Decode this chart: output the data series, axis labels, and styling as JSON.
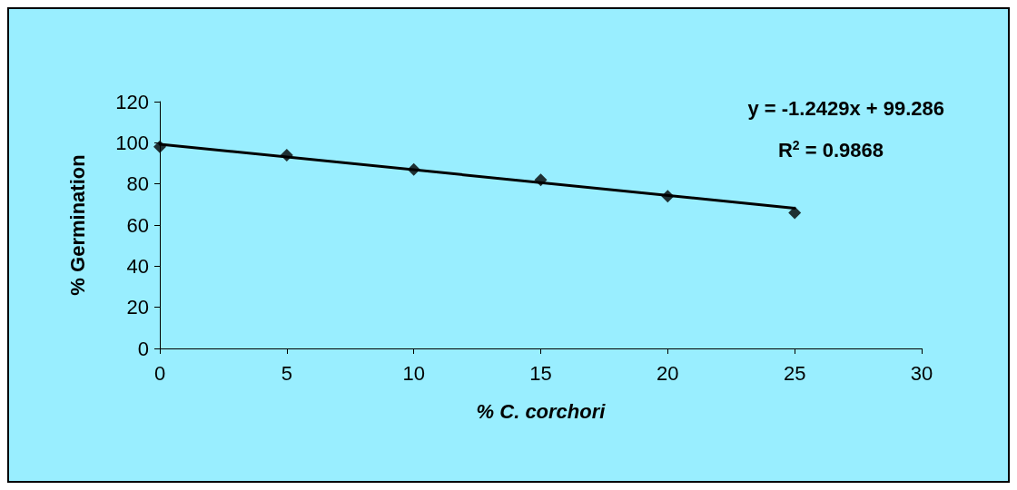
{
  "chart_data": {
    "type": "scatter",
    "xlabel": "% C. corchori",
    "ylabel": "% Germination",
    "series": [
      {
        "color": "#000000",
        "x": [
          0,
          5,
          10,
          15,
          20,
          25
        ],
        "values": [
          98,
          94,
          87,
          82,
          74,
          66
        ],
        "marker": "diamond"
      },
      {
        "type": "line",
        "color": "#000000",
        "x": [
          0,
          25
        ],
        "values": [
          99.3,
          68.2
        ],
        "marker": "none",
        "line_style": "solid"
      }
    ],
    "annotations": [
      "y = -1.2429x + 99.286",
      "R$^{2}$ = 0.9868"
    ],
    "xlim": [
      0,
      30
    ],
    "xticks": [
      0,
      5,
      10,
      15,
      20,
      25,
      30
    ],
    "ylim": [
      0,
      120
    ],
    "yticks": [
      0,
      20,
      40,
      60,
      80,
      100,
      120
    ],
    "grid": false
  }
}
